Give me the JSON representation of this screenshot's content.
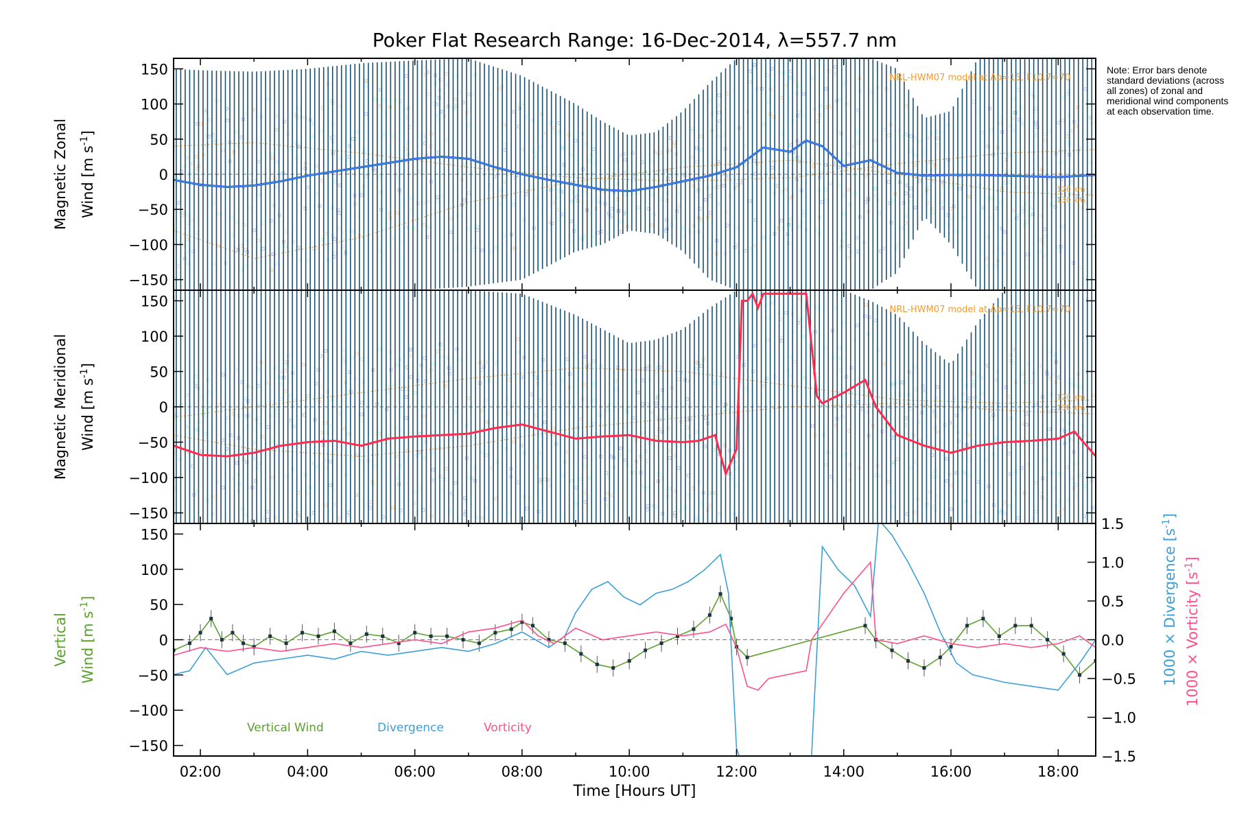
{
  "figure": {
    "title": "Poker Flat Research Range: 16-Dec-2014, λ=557.7 nm",
    "note": "Note: Error bars denote standard deviations (across all zones) of zonal and meridional wind components at each observation time.",
    "xlabel": "Time [Hours UT]",
    "x_ticks": [
      "02:00",
      "04:00",
      "06:00",
      "08:00",
      "10:00",
      "12:00",
      "14:00",
      "16:00",
      "18:00"
    ],
    "colors": {
      "zonal": "#1f3fd6",
      "zonal_light": "#3d9be0",
      "meridional": "#ff2a4d",
      "model": "#f59a2a",
      "errorbar": "#1a4f6e",
      "vertical": "#5aa02c",
      "divergence": "#3a9fd6",
      "vorticity": "#ff4f8a",
      "zone_blue": "#8a8fd8",
      "zone_green": "#a8f0c0",
      "zone_cyan": "#9fdcf0",
      "zone_orange": "#f2b070"
    }
  },
  "chart_data": [
    {
      "type": "line",
      "panel": "zonal",
      "ylabel_1": "Magnetic Zonal",
      "ylabel_2": "Wind [m s",
      "ylabel_sup": "-1",
      "ylabel_end": "]",
      "xlim": [
        1.5,
        18.7
      ],
      "ylim": [
        -165,
        165
      ],
      "y_ticks": [
        "150",
        "100",
        "50",
        "0",
        "−50",
        "−100",
        "−150"
      ],
      "model_label": "NRL-HWM07 model at Ap=15, F10.7=70",
      "model_alt_labels": [
        "120 km",
        "130 km"
      ],
      "mean_wind": {
        "x": [
          1.5,
          2.0,
          2.5,
          3.0,
          3.5,
          4.0,
          4.5,
          5.0,
          5.5,
          6.0,
          6.5,
          7.0,
          7.5,
          8.0,
          8.5,
          9.0,
          9.5,
          10.0,
          10.5,
          11.0,
          11.5,
          12.0,
          12.5,
          13.0,
          13.3,
          13.6,
          14.0,
          14.5,
          15.0,
          15.5,
          16.0,
          16.5,
          17.0,
          17.5,
          18.0,
          18.7
        ],
        "y": [
          -8,
          -15,
          -18,
          -16,
          -10,
          -2,
          4,
          10,
          16,
          22,
          25,
          22,
          10,
          0,
          -8,
          -15,
          -22,
          -24,
          -18,
          -10,
          -2,
          10,
          38,
          32,
          48,
          40,
          12,
          20,
          2,
          -2,
          -1,
          -1,
          -2,
          -3,
          -4,
          -1
        ]
      },
      "std_upper": {
        "x": [
          1.5,
          2.0,
          3.0,
          4.0,
          5.0,
          6.0,
          7.0,
          8.0,
          8.5,
          9.0,
          9.5,
          10.0,
          10.5,
          11.0,
          11.5,
          12.0,
          12.5,
          13.0,
          13.5,
          14.0,
          14.5,
          15.0,
          15.5,
          16.0,
          16.5,
          17.0,
          17.5,
          18.0,
          18.7
        ],
        "y": [
          150,
          148,
          146,
          150,
          158,
          162,
          165,
          140,
          120,
          100,
          75,
          55,
          60,
          90,
          130,
          165,
          165,
          165,
          165,
          165,
          165,
          150,
          80,
          90,
          165,
          165,
          165,
          165,
          165
        ]
      },
      "std_lower": {
        "x": [
          1.5,
          2.0,
          3.0,
          4.0,
          5.0,
          6.0,
          7.0,
          8.0,
          8.5,
          9.0,
          9.5,
          10.0,
          10.5,
          11.0,
          11.5,
          12.0,
          12.5,
          13.0,
          13.5,
          14.0,
          14.5,
          15.0,
          15.5,
          16.0,
          16.5,
          17.0,
          17.5,
          18.0,
          18.7
        ],
        "y": [
          -165,
          -165,
          -165,
          -165,
          -165,
          -165,
          -160,
          -150,
          -130,
          -110,
          -100,
          -80,
          -85,
          -110,
          -150,
          -165,
          -165,
          -165,
          -165,
          -165,
          -165,
          -140,
          -60,
          -100,
          -165,
          -165,
          -165,
          -165,
          -165
        ]
      },
      "model_120km": {
        "x": [
          1.5,
          3.0,
          5.0,
          7.0,
          9.0,
          11.0,
          13.0,
          15.0,
          17.0,
          18.7
        ],
        "y": [
          40,
          45,
          30,
          10,
          -5,
          -10,
          -5,
          15,
          30,
          35
        ]
      },
      "model_130km": {
        "x": [
          1.5,
          3.0,
          5.0,
          7.0,
          9.0,
          11.0,
          13.0,
          15.0,
          17.0,
          18.7
        ],
        "y": [
          -80,
          -120,
          -90,
          -40,
          -10,
          10,
          20,
          0,
          -25,
          -30
        ]
      }
    },
    {
      "type": "line",
      "panel": "meridional",
      "ylabel_1": "Magnetic Meridional",
      "ylabel_2": "Wind [m s",
      "ylabel_sup": "-1",
      "ylabel_end": "]",
      "xlim": [
        1.5,
        18.7
      ],
      "ylim": [
        -165,
        165
      ],
      "y_ticks": [
        "150",
        "100",
        "50",
        "0",
        "−50",
        "−100",
        "−150"
      ],
      "model_label": "NRL-HWM07 model at Ap=15, F10.7=70",
      "model_alt_labels": [
        "120 km",
        "130 km"
      ],
      "mean_wind": {
        "x": [
          1.5,
          2.0,
          2.5,
          3.0,
          3.5,
          4.0,
          4.5,
          5.0,
          5.5,
          6.0,
          6.5,
          7.0,
          7.5,
          8.0,
          8.5,
          9.0,
          9.5,
          10.0,
          10.5,
          11.0,
          11.3,
          11.6,
          11.8,
          12.0,
          12.1,
          12.2,
          12.3,
          12.4,
          12.5,
          13.3,
          13.5,
          13.6,
          14.0,
          14.4,
          14.6,
          15.0,
          15.5,
          16.0,
          16.5,
          17.0,
          17.5,
          18.0,
          18.3,
          18.7
        ],
        "y": [
          -55,
          -68,
          -70,
          -65,
          -55,
          -50,
          -48,
          -55,
          -45,
          -42,
          -40,
          -38,
          -30,
          -25,
          -35,
          -45,
          -42,
          -40,
          -48,
          -50,
          -48,
          -40,
          -95,
          -60,
          150,
          150,
          160,
          140,
          160,
          160,
          15,
          5,
          20,
          38,
          0,
          -40,
          -55,
          -65,
          -55,
          -50,
          -48,
          -45,
          -35,
          -70
        ]
      },
      "std_upper": {
        "x": [
          1.5,
          3.0,
          5.0,
          7.0,
          8.0,
          9.0,
          9.5,
          10.0,
          10.5,
          11.0,
          11.5,
          12.0,
          13.0,
          14.0,
          14.5,
          15.0,
          15.5,
          16.0,
          16.5,
          17.0,
          18.0,
          18.7
        ],
        "y": [
          165,
          165,
          165,
          165,
          160,
          130,
          110,
          90,
          95,
          110,
          140,
          165,
          165,
          165,
          150,
          130,
          90,
          60,
          120,
          165,
          165,
          165
        ]
      },
      "std_lower": {
        "x": [
          1.5,
          18.7
        ],
        "y": [
          -165,
          -165
        ]
      },
      "model_120km": {
        "x": [
          1.5,
          3.0,
          5.0,
          7.0,
          9.0,
          11.0,
          13.0,
          15.0,
          17.0,
          18.7
        ],
        "y": [
          -15,
          0,
          20,
          40,
          55,
          50,
          30,
          10,
          5,
          10
        ]
      },
      "model_130km": {
        "x": [
          1.5,
          3.0,
          5.0,
          7.0,
          9.0,
          11.0,
          13.0,
          15.0,
          17.0,
          18.7
        ],
        "y": [
          -40,
          -60,
          -70,
          -55,
          -30,
          -15,
          0,
          5,
          -5,
          -10
        ]
      }
    },
    {
      "type": "line",
      "panel": "vertical",
      "ylabel_1": "Vertical",
      "ylabel_2": "Wind [m s",
      "ylabel_sup": "-1",
      "ylabel_end": "]",
      "ylabel_right_a": "1000 × Divergence [s",
      "ylabel_right_b": "1000 × Vorticity [s",
      "ylabel_right_sup": "-1",
      "ylabel_right_end": "]",
      "xlim": [
        1.5,
        18.7
      ],
      "ylim": [
        -165,
        165
      ],
      "y2lim": [
        -1.5,
        1.5
      ],
      "y_ticks": [
        "150",
        "100",
        "50",
        "0",
        "−50",
        "−100",
        "−150"
      ],
      "y2_ticks": [
        "1.5",
        "1.0",
        "0.5",
        "0.0",
        "−0.5",
        "−1.0",
        "−1.5"
      ],
      "legend": [
        "Vertical Wind",
        "Divergence",
        "Vorticity"
      ],
      "series": [
        {
          "name": "Vertical Wind",
          "axis": "left",
          "x": [
            1.5,
            1.8,
            2.0,
            2.2,
            2.4,
            2.6,
            2.8,
            3.0,
            3.3,
            3.6,
            3.9,
            4.2,
            4.5,
            4.8,
            5.1,
            5.4,
            5.7,
            6.0,
            6.3,
            6.6,
            6.9,
            7.2,
            7.5,
            7.8,
            8.0,
            8.2,
            8.5,
            8.8,
            9.1,
            9.4,
            9.7,
            10.0,
            10.3,
            10.6,
            10.9,
            11.2,
            11.5,
            11.7,
            11.9,
            12.0,
            12.2,
            14.4,
            14.6,
            14.9,
            15.2,
            15.5,
            15.8,
            16.0,
            16.3,
            16.6,
            16.9,
            17.2,
            17.5,
            17.8,
            18.1,
            18.4,
            18.7
          ],
          "y": [
            -15,
            -5,
            10,
            30,
            0,
            10,
            -5,
            -10,
            5,
            -5,
            10,
            5,
            12,
            -5,
            8,
            5,
            -5,
            10,
            5,
            5,
            0,
            -5,
            10,
            15,
            25,
            20,
            0,
            -5,
            -20,
            -35,
            -40,
            -30,
            -15,
            -5,
            5,
            15,
            35,
            65,
            30,
            -10,
            -25,
            20,
            0,
            -15,
            -30,
            -40,
            -25,
            -10,
            20,
            30,
            5,
            20,
            20,
            0,
            -20,
            -50,
            -30
          ]
        },
        {
          "name": "Divergence",
          "axis": "right",
          "x": [
            1.5,
            1.8,
            2.1,
            2.5,
            3.0,
            3.5,
            4.0,
            4.5,
            5.0,
            5.5,
            6.0,
            6.5,
            7.0,
            7.5,
            8.0,
            8.5,
            8.8,
            9.0,
            9.3,
            9.6,
            9.9,
            10.2,
            10.5,
            10.8,
            11.1,
            11.4,
            11.7,
            11.85,
            12.0,
            12.05,
            13.4,
            13.45,
            13.6,
            13.9,
            14.2,
            14.5,
            14.65,
            14.9,
            15.2,
            15.5,
            15.8,
            16.1,
            16.4,
            16.7,
            17.0,
            17.5,
            18.0,
            18.4,
            18.7
          ],
          "y": [
            -0.45,
            -0.4,
            -0.1,
            -0.45,
            -0.3,
            -0.25,
            -0.2,
            -0.25,
            -0.15,
            -0.2,
            -0.15,
            -0.1,
            -0.15,
            -0.05,
            0.1,
            -0.1,
            0.05,
            0.35,
            0.65,
            0.75,
            0.55,
            0.45,
            0.6,
            0.65,
            0.75,
            0.9,
            1.1,
            0.6,
            -1.4,
            -1.5,
            -1.5,
            -0.8,
            1.2,
            0.9,
            0.7,
            0.3,
            1.55,
            1.35,
            1.0,
            0.6,
            0.1,
            -0.3,
            -0.45,
            -0.5,
            -0.55,
            -0.6,
            -0.65,
            -0.3,
            0.0
          ]
        },
        {
          "name": "Vorticity",
          "axis": "right",
          "x": [
            1.5,
            2.0,
            2.5,
            3.0,
            3.5,
            4.0,
            4.5,
            5.0,
            5.5,
            6.0,
            6.5,
            7.0,
            7.5,
            8.0,
            8.3,
            8.6,
            9.0,
            9.5,
            10.0,
            10.5,
            11.0,
            11.5,
            11.8,
            12.0,
            12.2,
            12.4,
            12.6,
            13.3,
            13.4,
            14.0,
            14.5,
            14.6,
            15.0,
            15.5,
            16.0,
            16.5,
            17.0,
            17.5,
            18.0,
            18.4,
            18.7
          ],
          "y": [
            -0.2,
            -0.1,
            -0.15,
            -0.1,
            -0.15,
            -0.1,
            -0.05,
            -0.1,
            -0.05,
            0.0,
            -0.05,
            0.1,
            0.15,
            0.25,
            0.05,
            -0.05,
            0.15,
            0.0,
            0.05,
            0.1,
            0.05,
            0.1,
            0.2,
            -0.1,
            -0.6,
            -0.65,
            -0.5,
            -0.4,
            0.0,
            0.6,
            1.0,
            0.0,
            -0.05,
            0.05,
            -0.05,
            -0.1,
            -0.05,
            -0.1,
            -0.05,
            0.05,
            -0.1
          ]
        }
      ]
    }
  ]
}
